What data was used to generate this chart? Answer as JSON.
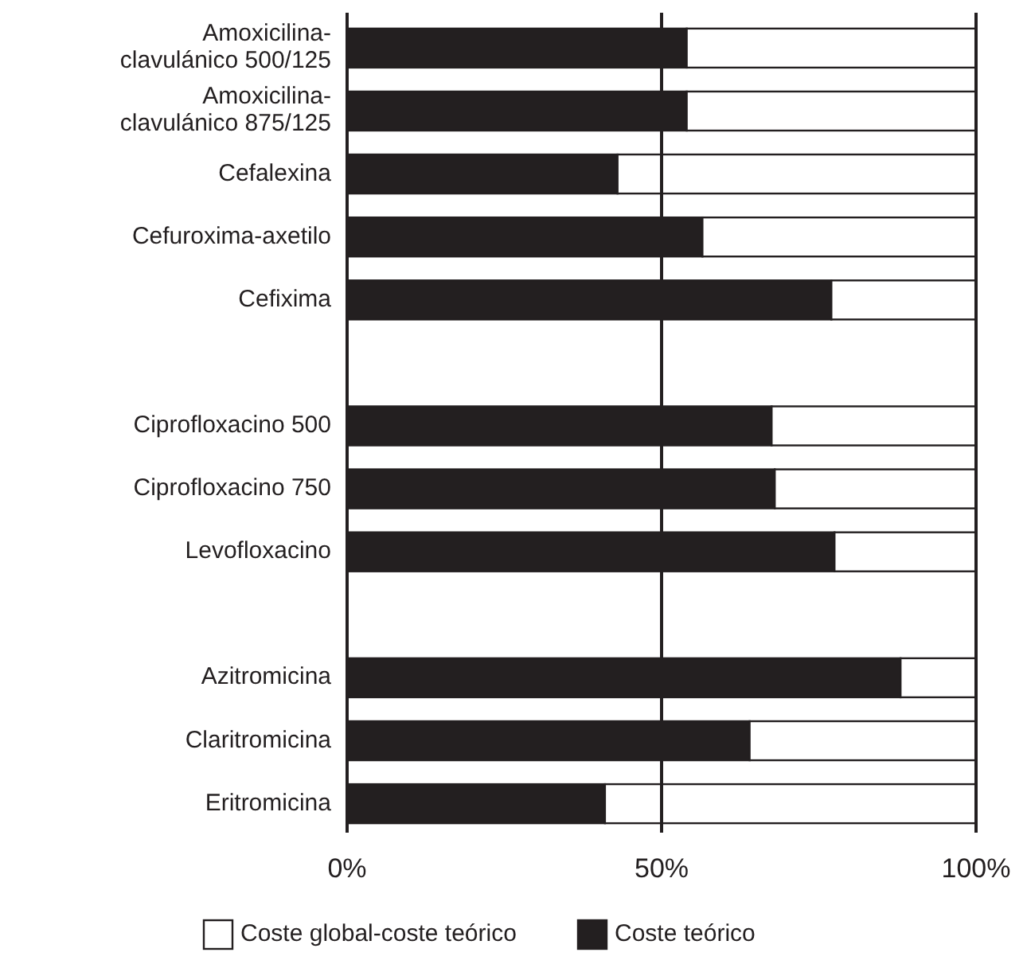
{
  "chart_data": {
    "type": "bar",
    "orientation": "horizontal",
    "stacked": true,
    "categories": [
      "Amoxicilina-\nclavulánico 500/125",
      "Amoxicilina-\nclavulánico 875/125",
      "Cefalexina",
      "Cefuroxima-axetilo",
      "Cefixima",
      null,
      "Ciprofloxacino 500",
      "Ciprofloxacino 750",
      "Levofloxacino",
      null,
      "Azitromicina",
      "Claritromicina",
      "Eritromicina"
    ],
    "series": [
      {
        "name": "Coste teórico",
        "color": "#231f20",
        "values": [
          54,
          54,
          43,
          56.5,
          77,
          null,
          67.5,
          68,
          77.5,
          null,
          88,
          64,
          41
        ]
      },
      {
        "name": "Coste global-coste teórico",
        "color": "#ffffff",
        "values": [
          46,
          46,
          57,
          43.5,
          23,
          null,
          32.5,
          32,
          22.5,
          null,
          12,
          36,
          59
        ]
      }
    ],
    "xlim": [
      0,
      100
    ],
    "xticks": [
      {
        "value": 0,
        "label": "0%"
      },
      {
        "value": 50,
        "label": "50%"
      },
      {
        "value": 100,
        "label": "100%"
      }
    ],
    "grid": "x",
    "legend": "bottom"
  }
}
